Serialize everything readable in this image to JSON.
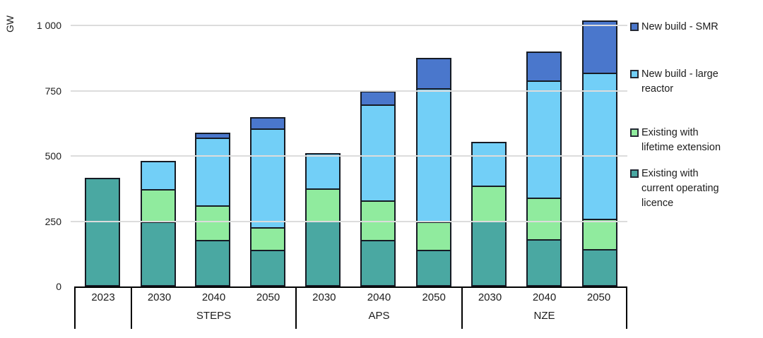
{
  "chart_data": {
    "type": "bar",
    "variant": "stacked",
    "unit": "GW",
    "y_axis": {
      "title": "GW",
      "max": 1000,
      "ticks": [
        0,
        250,
        500,
        750,
        1000
      ],
      "tick_labels": [
        "0",
        "250",
        "500",
        "750",
        "1 000"
      ],
      "grid": true
    },
    "series_order_bottom_to_top": [
      "current",
      "extension",
      "large",
      "smr"
    ],
    "series_colors": {
      "current": "#4aa8a2",
      "extension": "#90eb9e",
      "large": "#72cff7",
      "smr": "#4a77cc"
    },
    "series_names": {
      "current": "Existing with current operating licence",
      "extension": "Existing with lifetime extension",
      "large": "New build - large reactor",
      "smr": "New build - SMR"
    },
    "groups": [
      {
        "label": "",
        "bars": [
          {
            "year": "2023",
            "values": {
              "current": 415,
              "extension": 0,
              "large": 0,
              "smr": 0
            },
            "total": 415
          }
        ]
      },
      {
        "label": "STEPS",
        "bars": [
          {
            "year": "2030",
            "values": {
              "current": 250,
              "extension": 125,
              "large": 105,
              "smr": 0
            },
            "total": 480
          },
          {
            "year": "2040",
            "values": {
              "current": 175,
              "extension": 135,
              "large": 265,
              "smr": 15
            },
            "total": 590
          },
          {
            "year": "2050",
            "values": {
              "current": 135,
              "extension": 85,
              "large": 390,
              "smr": 40
            },
            "total": 650
          }
        ]
      },
      {
        "label": "APS",
        "bars": [
          {
            "year": "2030",
            "values": {
              "current": 250,
              "extension": 125,
              "large": 135,
              "smr": 0
            },
            "total": 510
          },
          {
            "year": "2040",
            "values": {
              "current": 175,
              "extension": 150,
              "large": 375,
              "smr": 50
            },
            "total": 750
          },
          {
            "year": "2050",
            "values": {
              "current": 135,
              "extension": 105,
              "large": 520,
              "smr": 115
            },
            "total": 875
          }
        ]
      },
      {
        "label": "NZE",
        "bars": [
          {
            "year": "2030",
            "values": {
              "current": 250,
              "extension": 135,
              "large": 170,
              "smr": 0
            },
            "total": 555
          },
          {
            "year": "2040",
            "values": {
              "current": 175,
              "extension": 160,
              "large": 455,
              "smr": 110
            },
            "total": 900
          },
          {
            "year": "2050",
            "values": {
              "current": 135,
              "extension": 115,
              "large": 570,
              "smr": 200
            },
            "total": 1020
          }
        ]
      }
    ]
  },
  "legend": {
    "items": [
      {
        "key": "smr",
        "label": "New build - SMR",
        "color": "#4a77cc"
      },
      {
        "key": "large",
        "label": "New build - large\nreactor",
        "color": "#72cff7"
      },
      {
        "key": "extension",
        "label": "Existing with\nlifetime extension",
        "color": "#90eb9e"
      },
      {
        "key": "current",
        "label": "Existing with\ncurrent operating\nlicence",
        "color": "#4aa8a2"
      }
    ]
  },
  "colors": {
    "bar_border": "#161b24",
    "gridline": "#dcdcdc",
    "axis_line": "#000000",
    "text": "#1c1c1c"
  }
}
